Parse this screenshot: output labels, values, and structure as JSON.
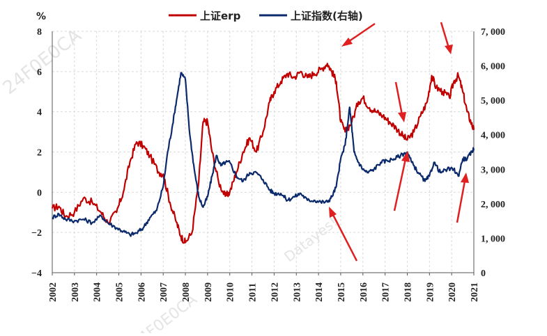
{
  "chart_data": {
    "type": "line",
    "unit_left": "%",
    "legend": [
      {
        "label": "上证erp",
        "color": "#c00000"
      },
      {
        "label": "上证指数(右轴)",
        "color": "#0b2a6b"
      }
    ],
    "x_ticks": [
      "2002",
      "2003",
      "2004",
      "2005",
      "2006",
      "2007",
      "2008",
      "2009",
      "2010",
      "2011",
      "2012",
      "2013",
      "2014",
      "2015",
      "2016",
      "2017",
      "2018",
      "2019",
      "2020",
      "2021"
    ],
    "y_left": {
      "min": -4,
      "max": 8,
      "ticks": [
        "8",
        "6",
        "4",
        "2",
        "0",
        "−2",
        "−4"
      ]
    },
    "y_right": {
      "min": 0,
      "max": 7000,
      "ticks": [
        "7, 000",
        "6, 000",
        "5, 000",
        "4, 000",
        "3, 000",
        "2, 000",
        "1, 000",
        "0"
      ]
    },
    "grid": true,
    "series": [
      {
        "name": "上证erp",
        "axis": "left",
        "color": "#c00000",
        "x": [
          2002.0,
          2002.3,
          2002.6,
          2003.0,
          2003.4,
          2003.8,
          2004.2,
          2004.5,
          2004.9,
          2005.2,
          2005.5,
          2005.8,
          2006.1,
          2006.4,
          2006.8,
          2007.0,
          2007.3,
          2007.6,
          2007.8,
          2008.0,
          2008.3,
          2008.6,
          2008.8,
          2009.0,
          2009.2,
          2009.5,
          2009.8,
          2010.0,
          2010.3,
          2010.6,
          2010.9,
          2011.2,
          2011.5,
          2011.8,
          2012.0,
          2012.3,
          2012.6,
          2012.9,
          2013.2,
          2013.5,
          2013.8,
          2014.1,
          2014.4,
          2014.6,
          2014.8,
          2015.0,
          2015.2,
          2015.5,
          2015.8,
          2016.0,
          2016.3,
          2016.6,
          2016.9,
          2017.2,
          2017.5,
          2017.8,
          2018.0,
          2018.3,
          2018.6,
          2018.9,
          2019.1,
          2019.3,
          2019.6,
          2019.9,
          2020.1,
          2020.3,
          2020.5,
          2020.7,
          2020.9,
          2021.0
        ],
        "y": [
          -0.8,
          -0.7,
          -1.2,
          -1.0,
          -0.3,
          -0.5,
          -1.0,
          -1.5,
          -1.0,
          0.0,
          1.5,
          2.5,
          2.3,
          1.8,
          1.0,
          0.9,
          -0.5,
          -1.5,
          -2.2,
          -2.5,
          -2.0,
          0.5,
          3.5,
          3.5,
          2.0,
          0.5,
          -0.2,
          0.0,
          1.0,
          2.0,
          2.7,
          2.0,
          3.0,
          4.5,
          5.0,
          5.5,
          5.9,
          5.7,
          6.0,
          5.7,
          5.9,
          6.1,
          6.4,
          6.0,
          5.5,
          3.5,
          3.0,
          3.5,
          4.5,
          4.7,
          4.2,
          4.0,
          3.8,
          3.5,
          3.2,
          2.8,
          2.6,
          3.0,
          3.8,
          4.5,
          5.8,
          5.2,
          5.0,
          4.7,
          5.5,
          5.8,
          5.0,
          4.0,
          3.4,
          3.1
        ]
      },
      {
        "name": "上证指数(右轴)",
        "axis": "right",
        "color": "#0b2a6b",
        "x": [
          2002.0,
          2002.3,
          2002.6,
          2003.0,
          2003.4,
          2003.8,
          2004.2,
          2004.5,
          2004.9,
          2005.2,
          2005.5,
          2005.8,
          2006.1,
          2006.4,
          2006.7,
          2007.0,
          2007.2,
          2007.4,
          2007.6,
          2007.8,
          2008.0,
          2008.2,
          2008.4,
          2008.6,
          2008.8,
          2009.0,
          2009.2,
          2009.4,
          2009.6,
          2009.8,
          2010.0,
          2010.3,
          2010.6,
          2010.9,
          2011.2,
          2011.5,
          2011.8,
          2012.0,
          2012.3,
          2012.6,
          2012.9,
          2013.2,
          2013.5,
          2013.8,
          2014.1,
          2014.4,
          2014.6,
          2014.8,
          2015.0,
          2015.2,
          2015.4,
          2015.5,
          2015.6,
          2015.8,
          2016.0,
          2016.2,
          2016.5,
          2016.8,
          2017.1,
          2017.4,
          2017.7,
          2018.0,
          2018.2,
          2018.5,
          2018.8,
          2019.0,
          2019.2,
          2019.5,
          2019.8,
          2020.1,
          2020.3,
          2020.5,
          2020.7,
          2020.9,
          2021.0
        ],
        "y": [
          1600,
          1700,
          1550,
          1500,
          1550,
          1450,
          1650,
          1450,
          1300,
          1200,
          1100,
          1150,
          1300,
          1600,
          1800,
          2500,
          3500,
          4200,
          5000,
          5800,
          5600,
          4000,
          3000,
          2200,
          1900,
          2200,
          2800,
          3400,
          3100,
          3200,
          3200,
          2800,
          2650,
          2900,
          2900,
          2700,
          2400,
          2300,
          2300,
          2100,
          2200,
          2300,
          2100,
          2100,
          2050,
          2050,
          2200,
          2500,
          3300,
          3700,
          4800,
          4200,
          3500,
          3200,
          3000,
          2900,
          3000,
          3200,
          3250,
          3300,
          3400,
          3500,
          3200,
          2900,
          2650,
          2800,
          3200,
          2900,
          3000,
          3000,
          2800,
          3300,
          3300,
          3500,
          3600
        ]
      }
    ]
  }
}
